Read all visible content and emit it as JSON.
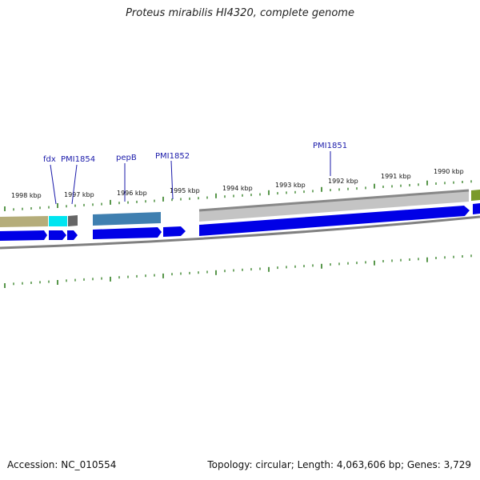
{
  "title": "Proteus mirabilis HI4320, complete genome",
  "accession": "Accession: NC_010554",
  "summary": "Topology: circular; Length: 4,063,606 bp; Genes: 3,729",
  "tick_labels": [
    "1998 kbp",
    "1997 kbp",
    "1996 kbp",
    "1995 kbp",
    "1994 kbp",
    "1993 kbp",
    "1992 kbp",
    "1991 kbp",
    "1990 kbp"
  ],
  "gene_labels": [
    "fdx",
    "PMI1854",
    "pepB",
    "PMI1852",
    "PMI1851"
  ],
  "colors": {
    "cds": "#0000e6",
    "backbone": "#888888",
    "tick": "#2e7d1e",
    "label": "#1a1aaa",
    "feature_tan": "#b5ad7a",
    "feature_cyan": "#00e5f0",
    "feature_steel": "#3f7fb0",
    "feature_gray": "#c4c4c4",
    "feature_olive": "#7a9a2a"
  }
}
